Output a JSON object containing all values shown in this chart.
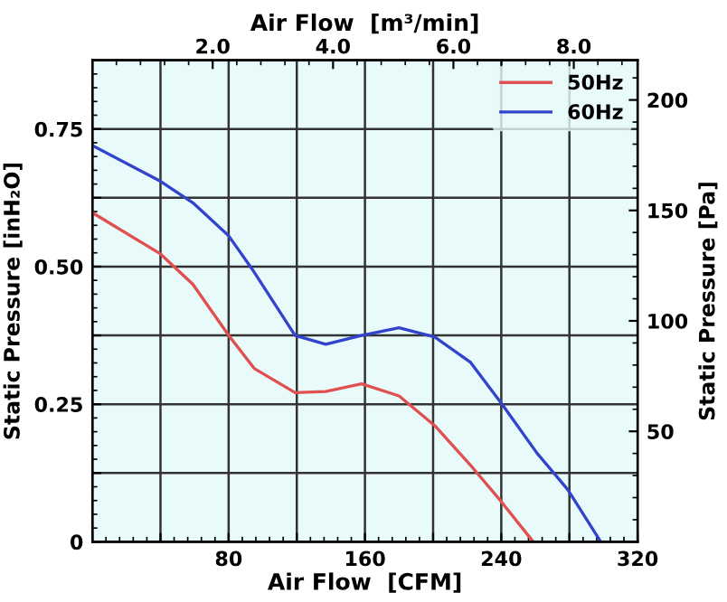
{
  "chart_data": {
    "type": "line",
    "xlabel": "Air Flow  [CFM]",
    "ylabel": "Static Pressure [inH₂O]",
    "y2label": "Static Pressure [Pa]",
    "x2label": "Air Flow  [m³/min]",
    "xlim": [
      0,
      320
    ],
    "xticks": [
      {
        "value": 0,
        "label": null
      },
      {
        "value": 40,
        "label": null
      },
      80,
      {
        "value": 120,
        "label": null
      },
      160,
      {
        "value": 200,
        "label": null
      },
      240,
      {
        "value": 280,
        "label": null
      },
      320
    ],
    "ylim": [
      0,
      0.875
    ],
    "yticks": [
      0,
      {
        "value": 0.125,
        "label": null
      },
      0.25,
      {
        "value": 0.375,
        "label": null
      },
      {
        "value": 0.5,
        "label": "0.50"
      },
      {
        "value": 0.625,
        "label": null
      },
      0.75
    ],
    "y2lim": [
      0,
      218
    ],
    "y2ticks": [
      50,
      100,
      150,
      200
    ],
    "x2lim": [
      0,
      9.06
    ],
    "x2ticks": [
      {
        "value": 2,
        "label": "2.0"
      },
      {
        "value": 4,
        "label": "4.0"
      },
      {
        "value": 6,
        "label": "6.0"
      },
      {
        "value": 8,
        "label": "8.0"
      }
    ],
    "grid": true,
    "legend": "top right",
    "marker": "none",
    "line_style": "solid",
    "series": [
      {
        "name": "50Hz",
        "color": "#e05050",
        "x": [
          0,
          40,
          59,
          80,
          95,
          119,
          137,
          158,
          180,
          201,
          222,
          240,
          258
        ],
        "values": [
          0.598,
          0.523,
          0.468,
          0.375,
          0.315,
          0.271,
          0.273,
          0.287,
          0.265,
          0.211,
          0.139,
          0.073,
          0.003
        ]
      },
      {
        "name": "60Hz",
        "color": "#3344cc",
        "x": [
          0,
          40,
          59,
          80,
          95,
          119,
          137,
          158,
          180,
          201,
          222,
          240,
          261,
          279,
          298
        ],
        "values": [
          0.72,
          0.655,
          0.616,
          0.556,
          0.49,
          0.375,
          0.359,
          0.375,
          0.389,
          0.372,
          0.326,
          0.252,
          0.161,
          0.095,
          0.002
        ]
      }
    ]
  }
}
